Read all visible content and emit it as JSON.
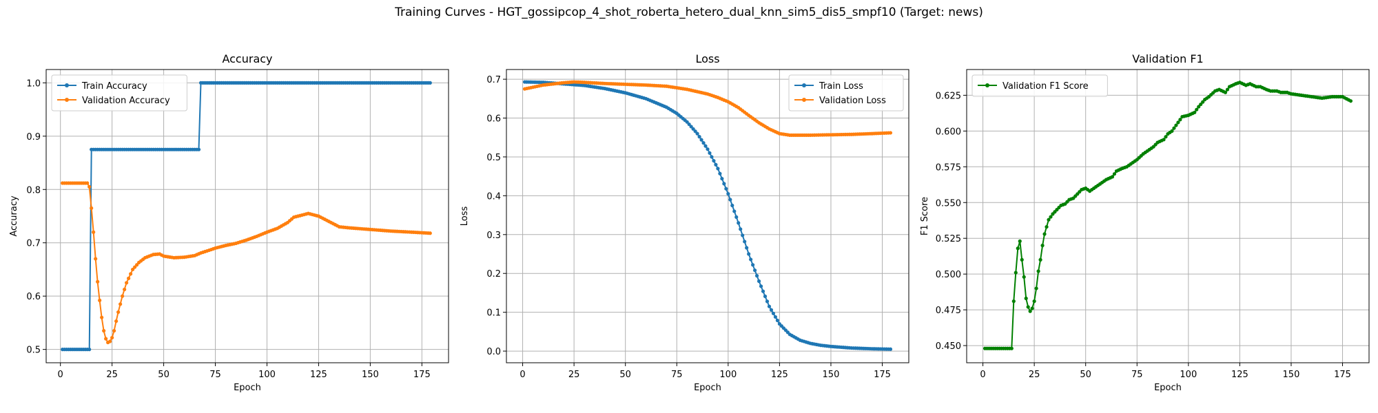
{
  "suptitle": "Training Curves - HGT_gossipcop_4_shot_roberta_hetero_dual_knn_sim5_dis5_smpf10 (Target: news)",
  "colors": {
    "train": "#1f77b4",
    "validation": "#ff7f0e",
    "f1": "#008000",
    "grid": "#b0b0b0"
  },
  "chart_data": [
    {
      "type": "line",
      "title": "Accuracy",
      "xlabel": "Epoch",
      "ylabel": "Accuracy",
      "xlim": [
        -6.9,
        187.9
      ],
      "ylim": [
        0.475,
        1.025
      ],
      "xticks": [
        0,
        25,
        50,
        75,
        100,
        125,
        150,
        175
      ],
      "yticks": [
        0.5,
        0.6,
        0.7,
        0.8,
        0.9,
        1.0
      ],
      "ytick_labels": [
        "0.5",
        "0.6",
        "0.7",
        "0.8",
        "0.9",
        "1.0"
      ],
      "legend_loc": "upper-left",
      "series": [
        {
          "name": "Train Accuracy",
          "color": "#1f77b4",
          "x": [
            1,
            14,
            15,
            67,
            68,
            179
          ],
          "y": [
            0.5,
            0.5,
            0.875,
            0.875,
            1.0,
            1.0
          ]
        },
        {
          "name": "Validation Accuracy",
          "color": "#ff7f0e",
          "x": [
            1,
            13,
            14,
            15,
            16,
            17,
            18,
            19,
            20,
            21,
            22,
            23,
            24,
            25,
            26,
            27,
            28,
            30,
            32,
            35,
            38,
            41,
            45,
            48,
            50,
            55,
            60,
            65,
            68,
            72,
            75,
            80,
            85,
            90,
            95,
            100,
            105,
            110,
            113,
            115,
            117,
            120,
            125,
            130,
            135,
            140,
            150,
            160,
            170,
            179
          ],
          "y": [
            0.812,
            0.812,
            0.805,
            0.765,
            0.72,
            0.67,
            0.627,
            0.592,
            0.56,
            0.535,
            0.52,
            0.513,
            0.515,
            0.522,
            0.535,
            0.553,
            0.57,
            0.6,
            0.625,
            0.65,
            0.663,
            0.672,
            0.678,
            0.679,
            0.675,
            0.672,
            0.673,
            0.676,
            0.681,
            0.686,
            0.69,
            0.695,
            0.699,
            0.705,
            0.712,
            0.72,
            0.727,
            0.738,
            0.748,
            0.75,
            0.752,
            0.755,
            0.75,
            0.74,
            0.73,
            0.728,
            0.725,
            0.722,
            0.72,
            0.718
          ]
        }
      ]
    },
    {
      "type": "line",
      "title": "Loss",
      "xlabel": "Epoch",
      "ylabel": "Loss",
      "xlim": [
        -7.9,
        187.9
      ],
      "ylim": [
        -0.03,
        0.725
      ],
      "xticks": [
        0,
        25,
        50,
        75,
        100,
        125,
        150,
        175
      ],
      "yticks": [
        0.0,
        0.1,
        0.2,
        0.3,
        0.4,
        0.5,
        0.6,
        0.7
      ],
      "ytick_labels": [
        "0.0",
        "0.1",
        "0.2",
        "0.3",
        "0.4",
        "0.5",
        "0.6",
        "0.7"
      ],
      "legend_loc": "upper-right",
      "series": [
        {
          "name": "Train Loss",
          "color": "#1f77b4",
          "x": [
            1,
            10,
            20,
            30,
            40,
            50,
            60,
            70,
            75,
            80,
            85,
            90,
            95,
            100,
            105,
            110,
            115,
            120,
            125,
            130,
            135,
            140,
            145,
            150,
            160,
            170,
            179
          ],
          "y": [
            0.693,
            0.692,
            0.688,
            0.684,
            0.676,
            0.665,
            0.65,
            0.628,
            0.612,
            0.59,
            0.56,
            0.52,
            0.47,
            0.405,
            0.33,
            0.25,
            0.18,
            0.115,
            0.07,
            0.043,
            0.028,
            0.02,
            0.015,
            0.012,
            0.008,
            0.006,
            0.005
          ]
        },
        {
          "name": "Validation Loss",
          "color": "#ff7f0e",
          "x": [
            1,
            10,
            20,
            25,
            30,
            40,
            50,
            60,
            70,
            80,
            85,
            90,
            95,
            100,
            105,
            110,
            115,
            120,
            125,
            130,
            135,
            140,
            150,
            160,
            170,
            179
          ],
          "y": [
            0.675,
            0.685,
            0.691,
            0.693,
            0.692,
            0.689,
            0.687,
            0.685,
            0.682,
            0.674,
            0.668,
            0.662,
            0.653,
            0.642,
            0.627,
            0.607,
            0.588,
            0.572,
            0.56,
            0.556,
            0.556,
            0.556,
            0.557,
            0.558,
            0.56,
            0.562
          ]
        }
      ]
    },
    {
      "type": "line",
      "title": "Validation F1",
      "xlabel": "Epoch",
      "ylabel": "F1 Score",
      "xlim": [
        -7.9,
        187.9
      ],
      "ylim": [
        0.438,
        0.643
      ],
      "xticks": [
        0,
        25,
        50,
        75,
        100,
        125,
        150,
        175
      ],
      "yticks": [
        0.45,
        0.475,
        0.5,
        0.525,
        0.55,
        0.575,
        0.6,
        0.625
      ],
      "ytick_labels": [
        "0.450",
        "0.475",
        "0.500",
        "0.525",
        "0.550",
        "0.575",
        "0.600",
        "0.625"
      ],
      "legend_loc": "upper-left",
      "series": [
        {
          "name": "Validation F1 Score",
          "color": "#008000",
          "x": [
            1,
            13,
            14,
            15,
            16,
            17,
            18,
            19,
            20,
            21,
            22,
            23,
            24,
            25,
            26,
            27,
            28,
            29,
            30,
            32,
            34,
            36,
            38,
            40,
            42,
            44,
            46,
            48,
            50,
            52,
            55,
            58,
            60,
            63,
            65,
            68,
            70,
            73,
            75,
            78,
            80,
            83,
            85,
            88,
            90,
            92,
            95,
            97,
            100,
            103,
            105,
            108,
            110,
            113,
            115,
            118,
            120,
            123,
            125,
            128,
            130,
            133,
            135,
            138,
            140,
            143,
            145,
            148,
            150,
            155,
            160,
            165,
            170,
            175,
            179
          ],
          "y": [
            0.448,
            0.448,
            0.448,
            0.481,
            0.501,
            0.518,
            0.523,
            0.51,
            0.498,
            0.483,
            0.477,
            0.474,
            0.476,
            0.481,
            0.49,
            0.502,
            0.51,
            0.52,
            0.528,
            0.538,
            0.542,
            0.545,
            0.548,
            0.549,
            0.552,
            0.553,
            0.556,
            0.559,
            0.56,
            0.558,
            0.561,
            0.564,
            0.566,
            0.568,
            0.572,
            0.574,
            0.575,
            0.578,
            0.58,
            0.584,
            0.586,
            0.589,
            0.592,
            0.594,
            0.598,
            0.6,
            0.606,
            0.61,
            0.611,
            0.613,
            0.617,
            0.622,
            0.624,
            0.628,
            0.629,
            0.627,
            0.631,
            0.633,
            0.634,
            0.632,
            0.633,
            0.631,
            0.631,
            0.629,
            0.628,
            0.628,
            0.627,
            0.627,
            0.626,
            0.625,
            0.624,
            0.623,
            0.624,
            0.624,
            0.621
          ]
        }
      ]
    }
  ]
}
